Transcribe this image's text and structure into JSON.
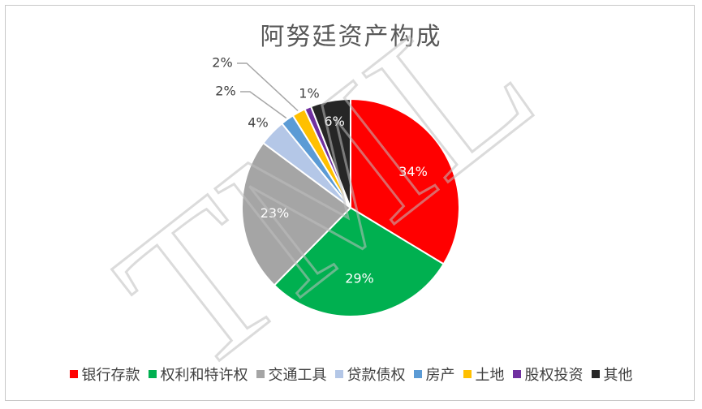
{
  "chart_data": {
    "type": "pie",
    "title": "阿努廷资产构成",
    "categories": [
      "银行存款",
      "权利和特许权",
      "交通工具",
      "贷款债权",
      "房产",
      "土地",
      "股权投资",
      "其他"
    ],
    "values": [
      34,
      29,
      23,
      4,
      2,
      2,
      1,
      6
    ],
    "labels": [
      "34%",
      "29%",
      "23%",
      "4%",
      "2%",
      "2%",
      "1%",
      "6%"
    ],
    "colors": [
      "#ff0000",
      "#00b050",
      "#a5a5a5",
      "#b4c7e7",
      "#5b9bd5",
      "#ffc000",
      "#7030a0",
      "#262626"
    ],
    "legend_position": "bottom",
    "start_angle": "12 o'clock",
    "direction": "clockwise"
  },
  "watermark": "TML"
}
